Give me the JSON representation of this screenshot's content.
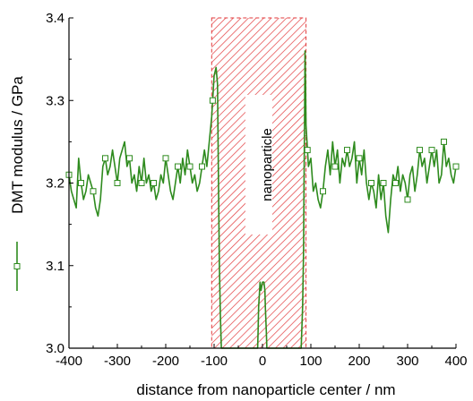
{
  "chart_data": {
    "type": "line",
    "xlabel": "distance from nanoparticle center / nm",
    "ylabel": "DMT modulus / GPa",
    "xlim": [
      -400,
      400
    ],
    "ylim": [
      3.0,
      3.4
    ],
    "xticks": [
      -400,
      -300,
      -200,
      -100,
      0,
      100,
      200,
      300,
      400
    ],
    "yticks": [
      3.0,
      3.1,
      3.2,
      3.3,
      3.4
    ],
    "xtick_labels": [
      "-400",
      "-300",
      "-200",
      "-100",
      "0",
      "100",
      "200",
      "300",
      "400"
    ],
    "ytick_labels": [
      "3.0",
      "3.1",
      "3.2",
      "3.3",
      "3.4"
    ],
    "grid": false,
    "annotation": {
      "label": "nanoparticle",
      "x_range": [
        -105,
        90
      ],
      "fill": "red diagonal hatch"
    },
    "series": [
      {
        "color": "#2e8b1e",
        "marker": "open-square",
        "x": [
          -400,
          -395,
          -390,
          -385,
          -380,
          -375,
          -370,
          -365,
          -360,
          -355,
          -350,
          -345,
          -340,
          -335,
          -330,
          -325,
          -320,
          -315,
          -310,
          -305,
          -300,
          -295,
          -290,
          -285,
          -280,
          -275,
          -270,
          -265,
          -260,
          -255,
          -250,
          -245,
          -240,
          -235,
          -230,
          -225,
          -220,
          -215,
          -210,
          -205,
          -200,
          -195,
          -190,
          -185,
          -180,
          -175,
          -170,
          -165,
          -160,
          -155,
          -150,
          -145,
          -140,
          -135,
          -130,
          -125,
          -120,
          -115,
          -110,
          -105,
          -100,
          -96,
          -93,
          -91,
          -89,
          -87,
          -85,
          -83,
          -80,
          -10,
          -9,
          -8,
          -6,
          -5,
          -3,
          0,
          3,
          5,
          6,
          8,
          9,
          10,
          80,
          83,
          85,
          86,
          87,
          88,
          89,
          90,
          92,
          95,
          100,
          105,
          110,
          115,
          120,
          125,
          130,
          135,
          140,
          145,
          150,
          155,
          160,
          165,
          170,
          175,
          180,
          185,
          190,
          195,
          200,
          205,
          210,
          215,
          220,
          225,
          230,
          235,
          240,
          245,
          250,
          255,
          260,
          265,
          270,
          275,
          280,
          285,
          290,
          295,
          300,
          305,
          310,
          315,
          320,
          325,
          330,
          335,
          340,
          345,
          350,
          355,
          360,
          365,
          370,
          375,
          380,
          385,
          390,
          395,
          400
        ],
        "values": [
          3.21,
          3.19,
          3.18,
          3.17,
          3.23,
          3.2,
          3.18,
          3.19,
          3.21,
          3.2,
          3.19,
          3.17,
          3.16,
          3.18,
          3.22,
          3.23,
          3.21,
          3.22,
          3.24,
          3.22,
          3.2,
          3.23,
          3.24,
          3.25,
          3.22,
          3.23,
          3.2,
          3.21,
          3.19,
          3.22,
          3.2,
          3.23,
          3.2,
          3.21,
          3.19,
          3.2,
          3.18,
          3.19,
          3.21,
          3.2,
          3.23,
          3.21,
          3.19,
          3.18,
          3.2,
          3.22,
          3.2,
          3.23,
          3.21,
          3.24,
          3.22,
          3.2,
          3.21,
          3.19,
          3.2,
          3.22,
          3.24,
          3.22,
          3.25,
          3.28,
          3.33,
          3.34,
          3.32,
          3.2,
          3.1,
          3.04,
          3.0,
          3.0,
          3.0,
          3.0,
          3.02,
          3.05,
          3.07,
          3.08,
          3.07,
          3.08,
          3.08,
          3.07,
          3.05,
          3.02,
          3.0,
          3.0,
          3.0,
          3.05,
          3.12,
          3.2,
          3.28,
          3.36,
          3.32,
          3.27,
          3.25,
          3.22,
          3.23,
          3.19,
          3.2,
          3.18,
          3.17,
          3.19,
          3.22,
          3.24,
          3.21,
          3.25,
          3.22,
          3.24,
          3.2,
          3.23,
          3.22,
          3.24,
          3.22,
          3.23,
          3.25,
          3.2,
          3.23,
          3.21,
          3.24,
          3.2,
          3.18,
          3.2,
          3.19,
          3.17,
          3.21,
          3.18,
          3.2,
          3.16,
          3.14,
          3.18,
          3.21,
          3.2,
          3.22,
          3.19,
          3.21,
          3.2,
          3.18,
          3.21,
          3.22,
          3.19,
          3.21,
          3.24,
          3.22,
          3.23,
          3.2,
          3.22,
          3.24,
          3.22,
          3.24,
          3.2,
          3.21,
          3.25,
          3.22,
          3.23,
          3.21,
          3.2,
          3.22
        ],
        "marker_x": [
          -400,
          -375,
          -350,
          -325,
          -300,
          -275,
          -250,
          -225,
          -200,
          -175,
          -150,
          -125,
          -103,
          93,
          125,
          150,
          175,
          200,
          225,
          250,
          275,
          300,
          325,
          350,
          375,
          400
        ]
      }
    ]
  }
}
